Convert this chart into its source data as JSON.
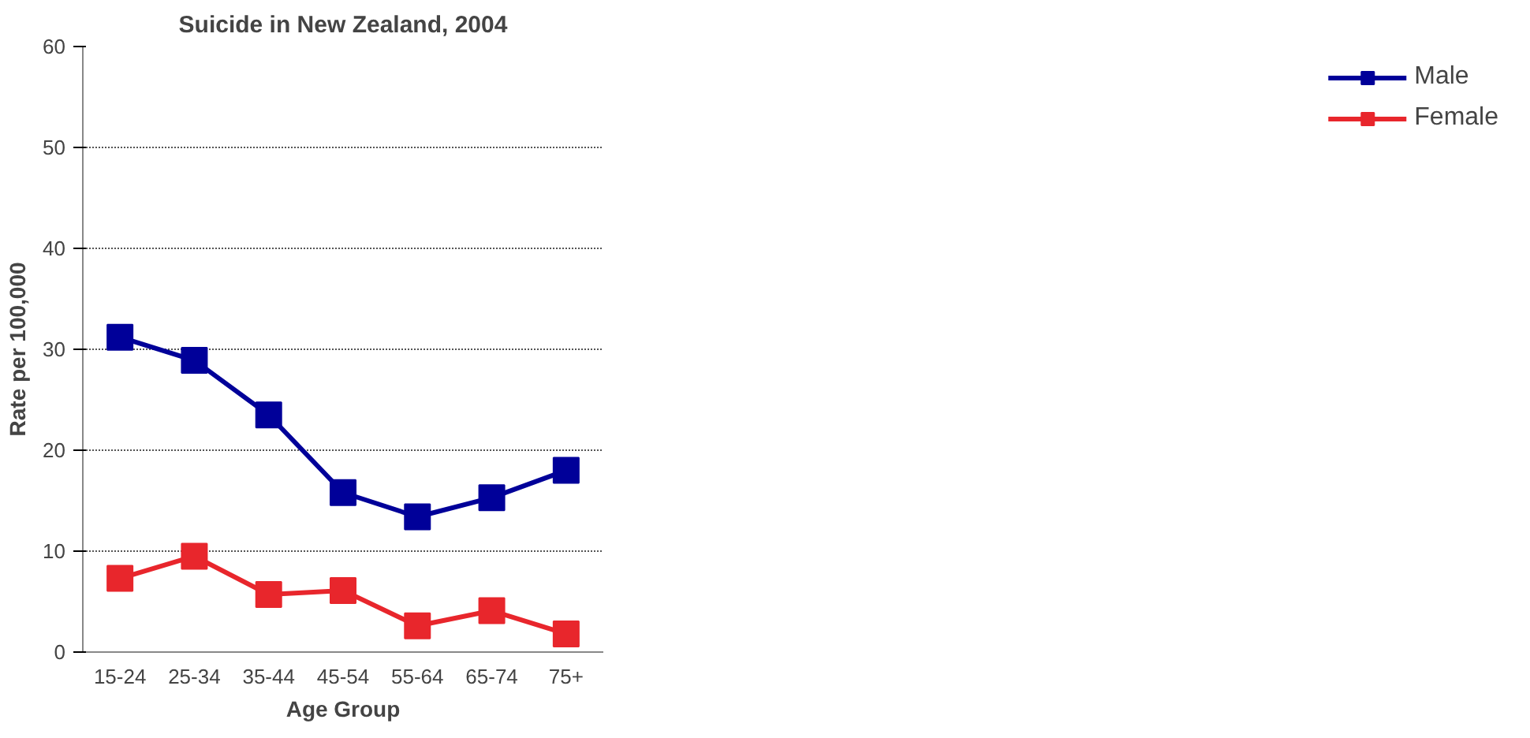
{
  "chart_data": {
    "type": "line",
    "title": "Suicide in New Zealand, 2004",
    "xlabel": "Age Group",
    "ylabel": "Rate per 100,000",
    "categories": [
      "15-24",
      "25-34",
      "35-44",
      "45-54",
      "55-64",
      "65-74",
      "75+"
    ],
    "series": [
      {
        "name": "Male",
        "color": "#000099",
        "values": [
          31.2,
          28.9,
          23.5,
          15.8,
          13.4,
          15.3,
          18.0
        ]
      },
      {
        "name": "Female",
        "color": "#e8262c",
        "values": [
          7.3,
          9.5,
          5.7,
          6.1,
          2.6,
          4.1,
          1.8
        ]
      }
    ],
    "ylim": [
      0,
      60
    ],
    "yticks": [
      0,
      10,
      20,
      30,
      40,
      50,
      60
    ],
    "grid": "y",
    "legend": "top right",
    "marker": "square",
    "line_style": "solid"
  }
}
